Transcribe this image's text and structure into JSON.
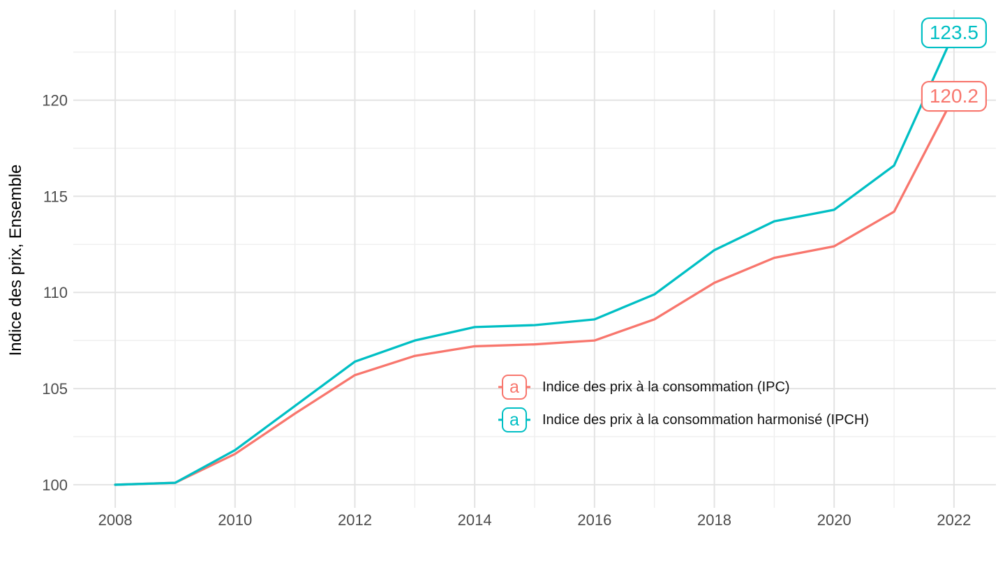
{
  "chart_data": {
    "type": "line",
    "title": "",
    "xlabel": "",
    "ylabel": "Indice des prix, Ensemble",
    "x": [
      2008,
      2009,
      2010,
      2011,
      2012,
      2013,
      2014,
      2015,
      2016,
      2017,
      2018,
      2019,
      2020,
      2021,
      2022
    ],
    "series": [
      {
        "id": "ipc",
        "name": "Indice des prix à la consommation (IPC)",
        "color": "#F8766D",
        "values": [
          100.0,
          100.1,
          101.6,
          103.7,
          105.7,
          106.7,
          107.2,
          107.3,
          107.5,
          108.6,
          110.5,
          111.8,
          112.4,
          114.2,
          120.2
        ],
        "end_label": "120.2"
      },
      {
        "id": "ipch",
        "name": "Indice des prix à la consommation harmonisé (IPCH)",
        "color": "#00BFC4",
        "values": [
          100.0,
          100.1,
          101.8,
          104.1,
          106.4,
          107.5,
          108.2,
          108.3,
          108.6,
          109.9,
          112.2,
          113.7,
          114.3,
          116.6,
          123.5
        ],
        "end_label": "123.5"
      }
    ],
    "x_ticks": [
      2008,
      2010,
      2012,
      2014,
      2016,
      2018,
      2020,
      2022
    ],
    "x_minor": [
      2009,
      2011,
      2013,
      2015,
      2017,
      2019,
      2021
    ],
    "y_ticks": [
      100,
      105,
      110,
      115,
      120
    ],
    "y_minor": [
      102.5,
      107.5,
      112.5,
      117.5,
      122.5
    ],
    "xlim": [
      2007.3,
      2022.7
    ],
    "ylim": [
      98.8,
      124.7
    ],
    "grid": true,
    "legend_position": "inside-bottom-center",
    "legend_key_glyph": "a",
    "colors": {
      "grid_major": "#e3e3e3",
      "grid_minor": "#efefef",
      "tick_text": "#4d4d4d",
      "axis_title_text": "#000000",
      "legend_text": "#111111",
      "background": "#ffffff"
    }
  }
}
